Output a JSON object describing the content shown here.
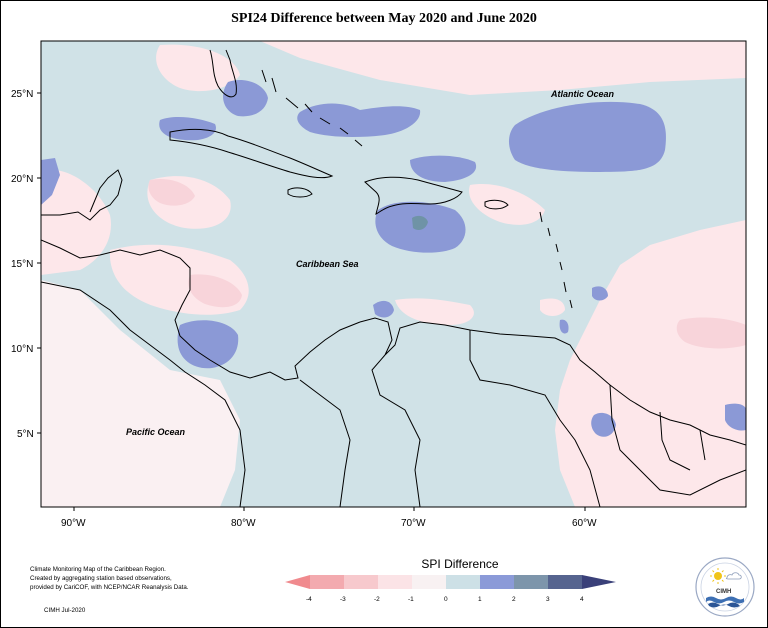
{
  "title": "SPI24 Difference between May 2020 and June 2020",
  "labels": {
    "atlantic": "Atlantic Ocean",
    "caribbean": "Caribbean Sea",
    "pacific": "Pacific Ocean"
  },
  "axes": {
    "lat_ticks": [
      "25°N",
      "20°N",
      "15°N",
      "10°N",
      "5°N"
    ],
    "lon_ticks": [
      "90°W",
      "80°W",
      "70°W",
      "60°W"
    ]
  },
  "credit": {
    "lines": [
      "Climate Monitoring Map of the Caribbean Region.",
      "Created by aggregating station based observations,",
      "provided by CariCOF, with NCEP/NCAR Reanalysis Data."
    ],
    "date": "CIMH   Jul-2020"
  },
  "legend": {
    "title": "SPI Difference",
    "ticks": [
      "-4",
      "-3",
      "-2",
      "-1",
      "0",
      "1",
      "2",
      "3",
      "4"
    ],
    "colors": [
      "#f08a8e",
      "#f3aaaf",
      "#f7c9cd",
      "#fbe3e6",
      "#f8f1f2",
      "#cde0e6",
      "#8b9ad8",
      "#7d95ab",
      "#56648f",
      "#3a4079"
    ]
  },
  "logo": {
    "name": "CIMH"
  },
  "colors": {
    "neutral": "#d0e2e7",
    "pink": "#fde7ea",
    "light_pink": "#f9f0f2",
    "blue": "#8b99d6",
    "teal": "#6f93a6",
    "land_line": "#000000"
  }
}
